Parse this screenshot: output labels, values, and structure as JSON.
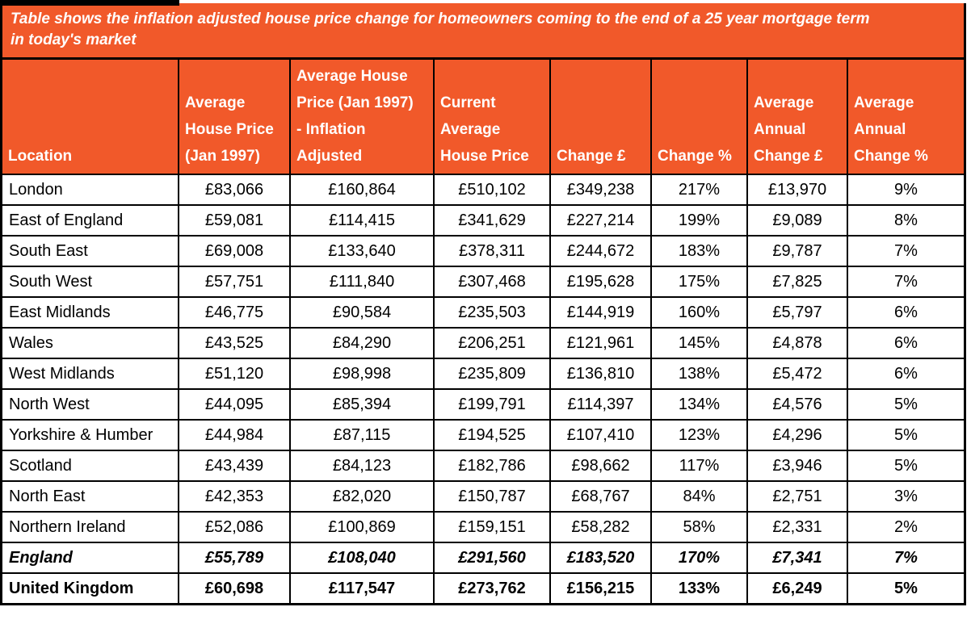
{
  "title": {
    "line1": "Table shows the inflation adjusted house price change for homeowners coming to the end of a 25 year mortgage term",
    "line2": "in today's market"
  },
  "colors": {
    "accent_orange": "#F1592A",
    "border_black": "#000000",
    "header_text": "#FFFFFF",
    "body_text": "#000000",
    "row_background": "#FFFFFF"
  },
  "header_lines": [
    "Location",
    "Average\nHouse Price\n(Jan 1997)",
    "Average House\nPrice (Jan 1997)\n- Inflation\nAdjusted",
    "Current\nAverage\nHouse Price",
    "Change £",
    "Change %",
    "Average\nAnnual\nChange £",
    "Average\nAnnual\nChange %"
  ],
  "chart_data": {
    "type": "table",
    "title": "Table shows the inflation adjusted house price change for homeowners coming to the end of a 25 year mortgage term in today's market",
    "columns": [
      "Location",
      "Average House Price (Jan 1997)",
      "Average House Price (Jan 1997) - Inflation Adjusted",
      "Current Average House Price",
      "Change £",
      "Change %",
      "Average Annual Change £",
      "Average Annual Change %"
    ],
    "rows": [
      {
        "emphasis": "none",
        "cells": [
          "London",
          "£83,066",
          "£160,864",
          "£510,102",
          "£349,238",
          "217%",
          "£13,970",
          "9%"
        ]
      },
      {
        "emphasis": "none",
        "cells": [
          "East of England",
          "£59,081",
          "£114,415",
          "£341,629",
          "£227,214",
          "199%",
          "£9,089",
          "8%"
        ]
      },
      {
        "emphasis": "none",
        "cells": [
          "South East",
          "£69,008",
          "£133,640",
          "£378,311",
          "£244,672",
          "183%",
          "£9,787",
          "7%"
        ]
      },
      {
        "emphasis": "none",
        "cells": [
          "South West",
          "£57,751",
          "£111,840",
          "£307,468",
          "£195,628",
          "175%",
          "£7,825",
          "7%"
        ]
      },
      {
        "emphasis": "none",
        "cells": [
          "East Midlands",
          "£46,775",
          "£90,584",
          "£235,503",
          "£144,919",
          "160%",
          "£5,797",
          "6%"
        ]
      },
      {
        "emphasis": "none",
        "cells": [
          "Wales",
          "£43,525",
          "£84,290",
          "£206,251",
          "£121,961",
          "145%",
          "£4,878",
          "6%"
        ]
      },
      {
        "emphasis": "none",
        "cells": [
          "West Midlands",
          "£51,120",
          "£98,998",
          "£235,809",
          "£136,810",
          "138%",
          "£5,472",
          "6%"
        ]
      },
      {
        "emphasis": "none",
        "cells": [
          "North West",
          "£44,095",
          "£85,394",
          "£199,791",
          "£114,397",
          "134%",
          "£4,576",
          "5%"
        ]
      },
      {
        "emphasis": "none",
        "cells": [
          "Yorkshire & Humber",
          "£44,984",
          "£87,115",
          "£194,525",
          "£107,410",
          "123%",
          "£4,296",
          "5%"
        ]
      },
      {
        "emphasis": "none",
        "cells": [
          "Scotland",
          "£43,439",
          "£84,123",
          "£182,786",
          "£98,662",
          "117%",
          "£3,946",
          "5%"
        ]
      },
      {
        "emphasis": "none",
        "cells": [
          "North East",
          "£42,353",
          "£82,020",
          "£150,787",
          "£68,767",
          "84%",
          "£2,751",
          "3%"
        ]
      },
      {
        "emphasis": "none",
        "cells": [
          "Northern Ireland",
          "£52,086",
          "£100,869",
          "£159,151",
          "£58,282",
          "58%",
          "£2,331",
          "2%"
        ]
      },
      {
        "emphasis": "bold-italic",
        "cells": [
          "England",
          "£55,789",
          "£108,040",
          "£291,560",
          "£183,520",
          "170%",
          "£7,341",
          "7%"
        ]
      },
      {
        "emphasis": "bold",
        "cells": [
          "United Kingdom",
          "£60,698",
          "£117,547",
          "£273,762",
          "£156,215",
          "133%",
          "£6,249",
          "5%"
        ]
      }
    ]
  }
}
